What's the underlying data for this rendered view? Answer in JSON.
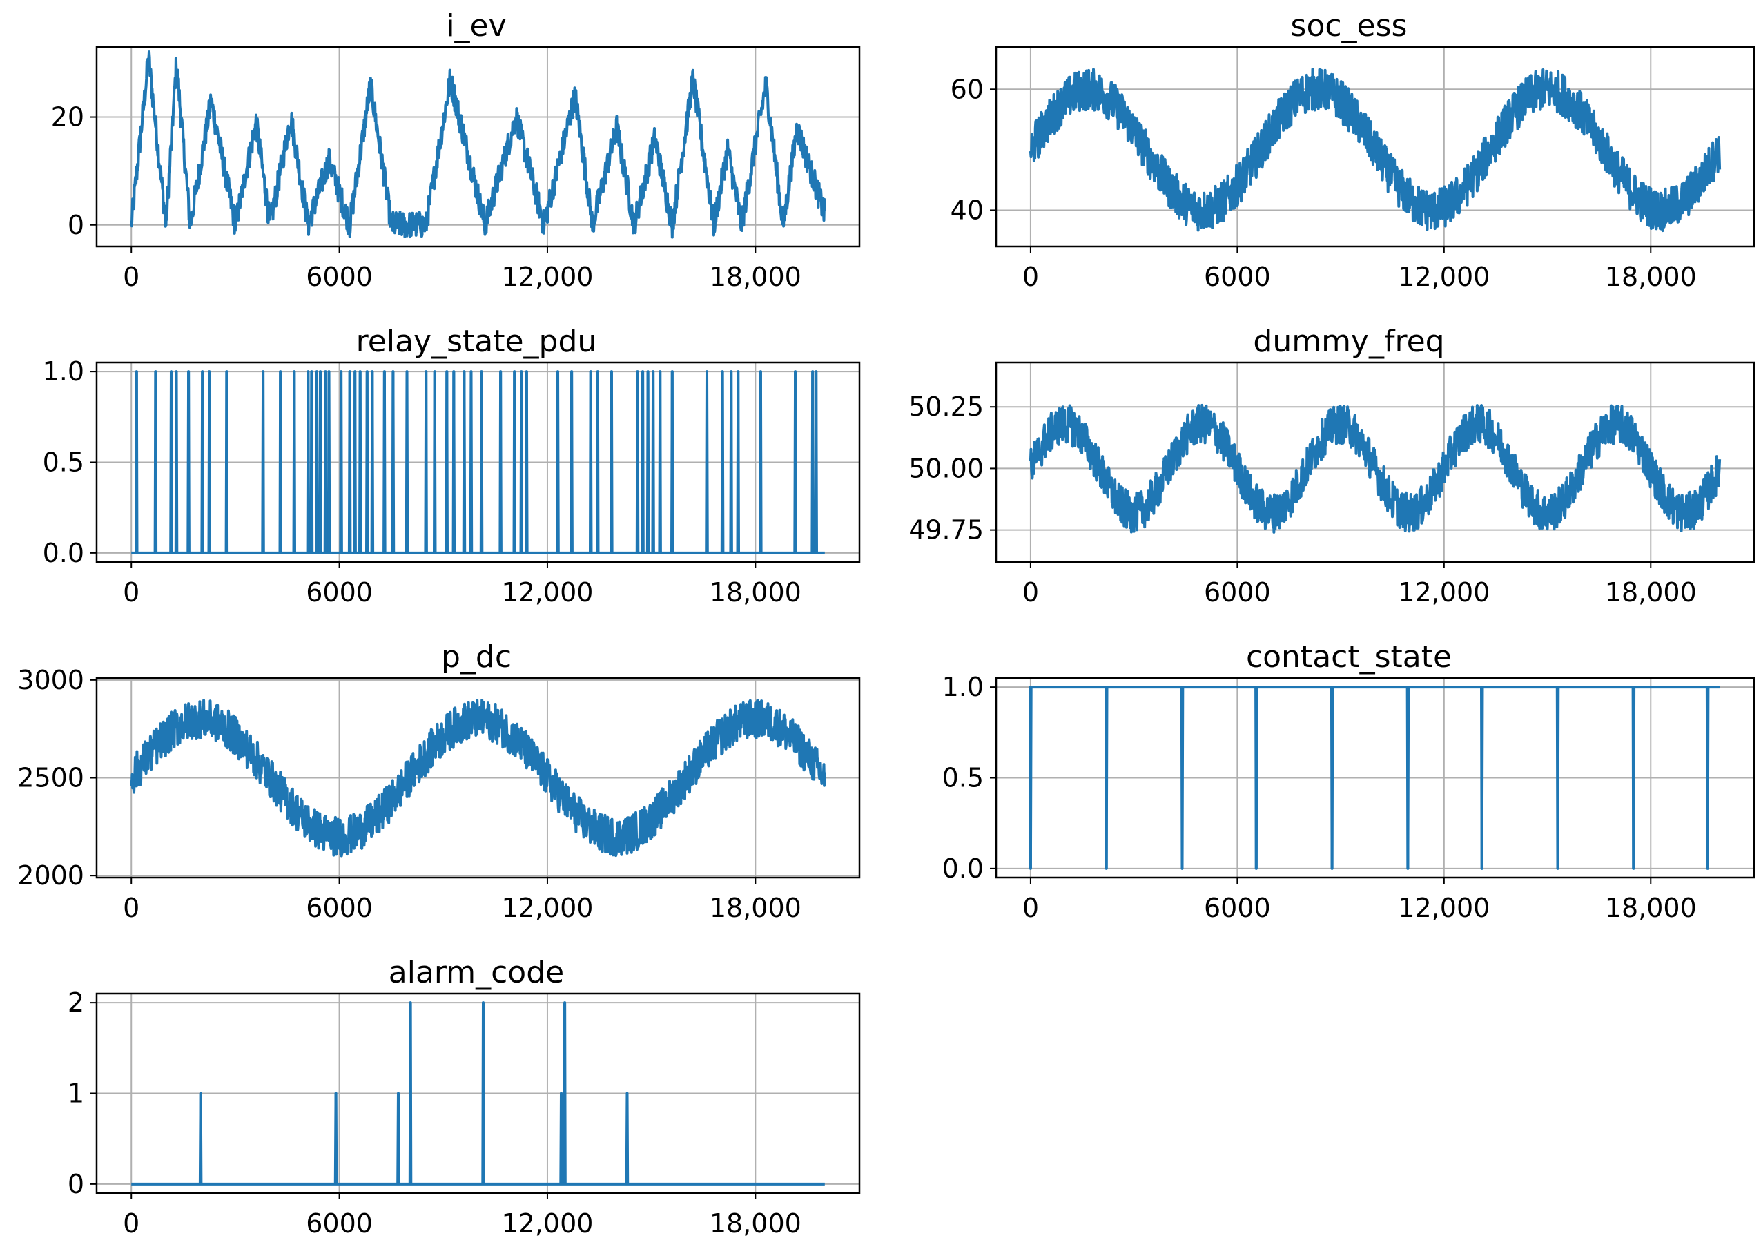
{
  "colors": {
    "line": "#1f77b4",
    "grid": "#b0b0b0",
    "axis": "#000000"
  },
  "chart_data": [
    {
      "type": "line",
      "title": "i_ev",
      "xlim": [
        -1000,
        21000
      ],
      "ylim": [
        -4,
        33
      ],
      "xticks": [
        0,
        6000,
        12000,
        18000
      ],
      "xtick_labels": [
        "0",
        "6000",
        "12,000",
        "18,000"
      ],
      "yticks": [
        0,
        20
      ],
      "ytick_labels": [
        "0",
        "20"
      ],
      "grid": true,
      "series": [
        {
          "pattern": "sawtooth_noise",
          "n": 20000,
          "peaks": [
            [
              500,
              31
            ],
            [
              1300,
              30
            ],
            [
              2300,
              23
            ],
            [
              3600,
              19
            ],
            [
              4600,
              20
            ],
            [
              5700,
              12
            ],
            [
              6900,
              26
            ],
            [
              9200,
              27
            ],
            [
              11100,
              20
            ],
            [
              12800,
              24
            ],
            [
              14000,
              18
            ],
            [
              15100,
              16
            ],
            [
              16200,
              27
            ],
            [
              17200,
              14
            ],
            [
              18300,
              26
            ],
            [
              19200,
              18
            ]
          ],
          "troughs": [
            [
              0,
              0
            ],
            [
              1000,
              0
            ],
            [
              1700,
              0
            ],
            [
              3000,
              0
            ],
            [
              4000,
              0
            ],
            [
              5100,
              0
            ],
            [
              6300,
              0
            ],
            [
              7500,
              0
            ],
            [
              8500,
              0
            ],
            [
              10200,
              0
            ],
            [
              11900,
              0
            ],
            [
              13300,
              0
            ],
            [
              14500,
              0
            ],
            [
              15600,
              0
            ],
            [
              16800,
              0
            ],
            [
              17600,
              0
            ],
            [
              18800,
              0
            ],
            [
              20000,
              2
            ]
          ],
          "noise_amplitude": 2.5
        }
      ]
    },
    {
      "type": "line",
      "title": "soc_ess",
      "xlim": [
        -1000,
        21000
      ],
      "ylim": [
        34,
        67
      ],
      "xticks": [
        0,
        6000,
        12000,
        18000
      ],
      "xtick_labels": [
        "0",
        "6000",
        "12,000",
        "18,000"
      ],
      "yticks": [
        40,
        60
      ],
      "ytick_labels": [
        "40",
        "60"
      ],
      "grid": true,
      "series": [
        {
          "pattern": "sine_noise",
          "n": 20000,
          "mean": 50,
          "amplitude": 10,
          "period": 6667,
          "phase": 0,
          "noise_amplitude": 3.5
        }
      ]
    },
    {
      "type": "line",
      "title": "relay_state_pdu",
      "xlim": [
        -1000,
        21000
      ],
      "ylim": [
        -0.05,
        1.05
      ],
      "xticks": [
        0,
        6000,
        12000,
        18000
      ],
      "xtick_labels": [
        "0",
        "6000",
        "12,000",
        "18,000"
      ],
      "yticks": [
        0,
        0.5,
        1.0
      ],
      "ytick_labels": [
        "0.0",
        "0.5",
        "1.0"
      ],
      "grid": true,
      "series": [
        {
          "pattern": "spikes",
          "baseline": 0,
          "x0": 0,
          "x1": 20000,
          "spikes": [
            [
              150,
              1
            ],
            [
              700,
              1
            ],
            [
              1150,
              1
            ],
            [
              1300,
              1
            ],
            [
              1650,
              1
            ],
            [
              2050,
              1
            ],
            [
              2250,
              1
            ],
            [
              2750,
              1
            ],
            [
              3800,
              1
            ],
            [
              4300,
              1
            ],
            [
              4700,
              1
            ],
            [
              5100,
              1
            ],
            [
              5200,
              1
            ],
            [
              5350,
              1
            ],
            [
              5450,
              1
            ],
            [
              5600,
              1
            ],
            [
              5700,
              1
            ],
            [
              6050,
              1
            ],
            [
              6300,
              1
            ],
            [
              6450,
              1
            ],
            [
              6600,
              1
            ],
            [
              6800,
              1
            ],
            [
              6950,
              1
            ],
            [
              7300,
              1
            ],
            [
              7550,
              1
            ],
            [
              7950,
              1
            ],
            [
              8500,
              1
            ],
            [
              8750,
              1
            ],
            [
              9100,
              1
            ],
            [
              9300,
              1
            ],
            [
              9600,
              1
            ],
            [
              9800,
              1
            ],
            [
              10100,
              1
            ],
            [
              10650,
              1
            ],
            [
              11050,
              1
            ],
            [
              11250,
              1
            ],
            [
              11400,
              1
            ],
            [
              12300,
              1
            ],
            [
              12700,
              1
            ],
            [
              13250,
              1
            ],
            [
              13450,
              1
            ],
            [
              13850,
              1
            ],
            [
              14600,
              1
            ],
            [
              14750,
              1
            ],
            [
              14900,
              1
            ],
            [
              15050,
              1
            ],
            [
              15250,
              1
            ],
            [
              15600,
              1
            ],
            [
              16600,
              1
            ],
            [
              17050,
              1
            ],
            [
              17300,
              1
            ],
            [
              17500,
              1
            ],
            [
              18150,
              1
            ],
            [
              19150,
              1
            ],
            [
              19650,
              1
            ],
            [
              19750,
              1
            ]
          ]
        }
      ]
    },
    {
      "type": "line",
      "title": "dummy_freq",
      "xlim": [
        -1000,
        21000
      ],
      "ylim": [
        49.62,
        50.43
      ],
      "xticks": [
        0,
        6000,
        12000,
        18000
      ],
      "xtick_labels": [
        "0",
        "6000",
        "12,000",
        "18,000"
      ],
      "yticks": [
        49.75,
        50.0,
        50.25
      ],
      "ytick_labels": [
        "49.75",
        "50.00",
        "50.25"
      ],
      "grid": true,
      "series": [
        {
          "pattern": "sine_noise",
          "n": 20000,
          "mean": 50.0,
          "amplitude": 0.18,
          "period": 4000,
          "phase": 0,
          "noise_amplitude": 0.08
        }
      ]
    },
    {
      "type": "line",
      "title": "p_dc",
      "xlim": [
        -1000,
        21000
      ],
      "ylim": [
        1990,
        3010
      ],
      "xticks": [
        0,
        6000,
        12000,
        18000
      ],
      "xtick_labels": [
        "0",
        "6000",
        "12,000",
        "18,000"
      ],
      "yticks": [
        2000,
        2500,
        3000
      ],
      "ytick_labels": [
        "2000",
        "2500",
        "3000"
      ],
      "grid": true,
      "series": [
        {
          "pattern": "sine_noise",
          "n": 20000,
          "mean": 2500,
          "amplitude": 300,
          "period": 8000,
          "phase": 0,
          "noise_amplitude": 100
        }
      ]
    },
    {
      "type": "line",
      "title": "contact_state",
      "xlim": [
        -1000,
        21000
      ],
      "ylim": [
        -0.05,
        1.05
      ],
      "xticks": [
        0,
        6000,
        12000,
        18000
      ],
      "xtick_labels": [
        "0",
        "6000",
        "12,000",
        "18,000"
      ],
      "yticks": [
        0,
        0.5,
        1.0
      ],
      "ytick_labels": [
        "0.0",
        "0.5",
        "1.0"
      ],
      "grid": true,
      "series": [
        {
          "pattern": "spikes",
          "baseline": 1,
          "x0": 0,
          "x1": 20000,
          "spikes": [
            [
              0,
              0
            ],
            [
              2200,
              0
            ],
            [
              4400,
              0
            ],
            [
              6550,
              0
            ],
            [
              8750,
              0
            ],
            [
              10950,
              0
            ],
            [
              13100,
              0
            ],
            [
              15300,
              0
            ],
            [
              17500,
              0
            ],
            [
              19650,
              0
            ]
          ]
        }
      ]
    },
    {
      "type": "line",
      "title": "alarm_code",
      "xlim": [
        -1000,
        21000
      ],
      "ylim": [
        -0.1,
        2.1
      ],
      "xticks": [
        0,
        6000,
        12000,
        18000
      ],
      "xtick_labels": [
        "0",
        "6000",
        "12,000",
        "18,000"
      ],
      "yticks": [
        0,
        1,
        2
      ],
      "ytick_labels": [
        "0",
        "1",
        "2"
      ],
      "grid": true,
      "series": [
        {
          "pattern": "spikes",
          "baseline": 0,
          "x0": 0,
          "x1": 20000,
          "spikes": [
            [
              2000,
              1
            ],
            [
              5900,
              1
            ],
            [
              7700,
              1
            ],
            [
              8050,
              2
            ],
            [
              10150,
              2
            ],
            [
              12400,
              1
            ],
            [
              12500,
              2
            ],
            [
              14300,
              1
            ]
          ]
        }
      ]
    }
  ]
}
